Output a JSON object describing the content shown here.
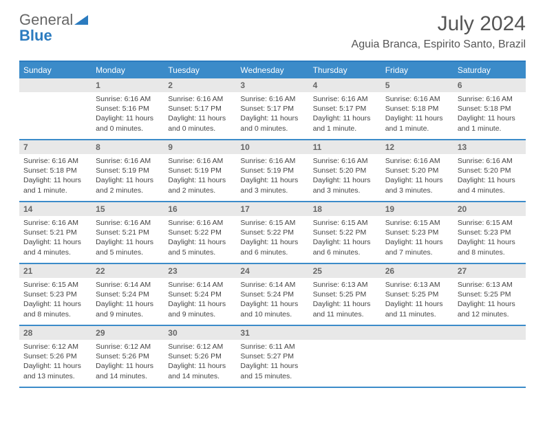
{
  "logo": {
    "word1": "General",
    "word2": "Blue"
  },
  "title": "July 2024",
  "location": "Aguia Branca, Espirito Santo, Brazil",
  "day_headers": [
    "Sunday",
    "Monday",
    "Tuesday",
    "Wednesday",
    "Thursday",
    "Friday",
    "Saturday"
  ],
  "colors": {
    "header_bg": "#3b8bc9",
    "border": "#2b7bbf",
    "daynum_bg": "#e8e8e8",
    "text": "#444444"
  },
  "typography": {
    "title_fontsize": 30,
    "location_fontsize": 16,
    "header_fontsize": 12,
    "body_fontsize": 10.5
  },
  "weeks": [
    [
      null,
      {
        "n": "1",
        "sunrise": "Sunrise: 6:16 AM",
        "sunset": "Sunset: 5:16 PM",
        "daylight": "Daylight: 11 hours and 0 minutes."
      },
      {
        "n": "2",
        "sunrise": "Sunrise: 6:16 AM",
        "sunset": "Sunset: 5:17 PM",
        "daylight": "Daylight: 11 hours and 0 minutes."
      },
      {
        "n": "3",
        "sunrise": "Sunrise: 6:16 AM",
        "sunset": "Sunset: 5:17 PM",
        "daylight": "Daylight: 11 hours and 0 minutes."
      },
      {
        "n": "4",
        "sunrise": "Sunrise: 6:16 AM",
        "sunset": "Sunset: 5:17 PM",
        "daylight": "Daylight: 11 hours and 1 minute."
      },
      {
        "n": "5",
        "sunrise": "Sunrise: 6:16 AM",
        "sunset": "Sunset: 5:18 PM",
        "daylight": "Daylight: 11 hours and 1 minute."
      },
      {
        "n": "6",
        "sunrise": "Sunrise: 6:16 AM",
        "sunset": "Sunset: 5:18 PM",
        "daylight": "Daylight: 11 hours and 1 minute."
      }
    ],
    [
      {
        "n": "7",
        "sunrise": "Sunrise: 6:16 AM",
        "sunset": "Sunset: 5:18 PM",
        "daylight": "Daylight: 11 hours and 1 minute."
      },
      {
        "n": "8",
        "sunrise": "Sunrise: 6:16 AM",
        "sunset": "Sunset: 5:19 PM",
        "daylight": "Daylight: 11 hours and 2 minutes."
      },
      {
        "n": "9",
        "sunrise": "Sunrise: 6:16 AM",
        "sunset": "Sunset: 5:19 PM",
        "daylight": "Daylight: 11 hours and 2 minutes."
      },
      {
        "n": "10",
        "sunrise": "Sunrise: 6:16 AM",
        "sunset": "Sunset: 5:19 PM",
        "daylight": "Daylight: 11 hours and 3 minutes."
      },
      {
        "n": "11",
        "sunrise": "Sunrise: 6:16 AM",
        "sunset": "Sunset: 5:20 PM",
        "daylight": "Daylight: 11 hours and 3 minutes."
      },
      {
        "n": "12",
        "sunrise": "Sunrise: 6:16 AM",
        "sunset": "Sunset: 5:20 PM",
        "daylight": "Daylight: 11 hours and 3 minutes."
      },
      {
        "n": "13",
        "sunrise": "Sunrise: 6:16 AM",
        "sunset": "Sunset: 5:20 PM",
        "daylight": "Daylight: 11 hours and 4 minutes."
      }
    ],
    [
      {
        "n": "14",
        "sunrise": "Sunrise: 6:16 AM",
        "sunset": "Sunset: 5:21 PM",
        "daylight": "Daylight: 11 hours and 4 minutes."
      },
      {
        "n": "15",
        "sunrise": "Sunrise: 6:16 AM",
        "sunset": "Sunset: 5:21 PM",
        "daylight": "Daylight: 11 hours and 5 minutes."
      },
      {
        "n": "16",
        "sunrise": "Sunrise: 6:16 AM",
        "sunset": "Sunset: 5:22 PM",
        "daylight": "Daylight: 11 hours and 5 minutes."
      },
      {
        "n": "17",
        "sunrise": "Sunrise: 6:15 AM",
        "sunset": "Sunset: 5:22 PM",
        "daylight": "Daylight: 11 hours and 6 minutes."
      },
      {
        "n": "18",
        "sunrise": "Sunrise: 6:15 AM",
        "sunset": "Sunset: 5:22 PM",
        "daylight": "Daylight: 11 hours and 6 minutes."
      },
      {
        "n": "19",
        "sunrise": "Sunrise: 6:15 AM",
        "sunset": "Sunset: 5:23 PM",
        "daylight": "Daylight: 11 hours and 7 minutes."
      },
      {
        "n": "20",
        "sunrise": "Sunrise: 6:15 AM",
        "sunset": "Sunset: 5:23 PM",
        "daylight": "Daylight: 11 hours and 8 minutes."
      }
    ],
    [
      {
        "n": "21",
        "sunrise": "Sunrise: 6:15 AM",
        "sunset": "Sunset: 5:23 PM",
        "daylight": "Daylight: 11 hours and 8 minutes."
      },
      {
        "n": "22",
        "sunrise": "Sunrise: 6:14 AM",
        "sunset": "Sunset: 5:24 PM",
        "daylight": "Daylight: 11 hours and 9 minutes."
      },
      {
        "n": "23",
        "sunrise": "Sunrise: 6:14 AM",
        "sunset": "Sunset: 5:24 PM",
        "daylight": "Daylight: 11 hours and 9 minutes."
      },
      {
        "n": "24",
        "sunrise": "Sunrise: 6:14 AM",
        "sunset": "Sunset: 5:24 PM",
        "daylight": "Daylight: 11 hours and 10 minutes."
      },
      {
        "n": "25",
        "sunrise": "Sunrise: 6:13 AM",
        "sunset": "Sunset: 5:25 PM",
        "daylight": "Daylight: 11 hours and 11 minutes."
      },
      {
        "n": "26",
        "sunrise": "Sunrise: 6:13 AM",
        "sunset": "Sunset: 5:25 PM",
        "daylight": "Daylight: 11 hours and 11 minutes."
      },
      {
        "n": "27",
        "sunrise": "Sunrise: 6:13 AM",
        "sunset": "Sunset: 5:25 PM",
        "daylight": "Daylight: 11 hours and 12 minutes."
      }
    ],
    [
      {
        "n": "28",
        "sunrise": "Sunrise: 6:12 AM",
        "sunset": "Sunset: 5:26 PM",
        "daylight": "Daylight: 11 hours and 13 minutes."
      },
      {
        "n": "29",
        "sunrise": "Sunrise: 6:12 AM",
        "sunset": "Sunset: 5:26 PM",
        "daylight": "Daylight: 11 hours and 14 minutes."
      },
      {
        "n": "30",
        "sunrise": "Sunrise: 6:12 AM",
        "sunset": "Sunset: 5:26 PM",
        "daylight": "Daylight: 11 hours and 14 minutes."
      },
      {
        "n": "31",
        "sunrise": "Sunrise: 6:11 AM",
        "sunset": "Sunset: 5:27 PM",
        "daylight": "Daylight: 11 hours and 15 minutes."
      },
      null,
      null,
      null
    ]
  ]
}
